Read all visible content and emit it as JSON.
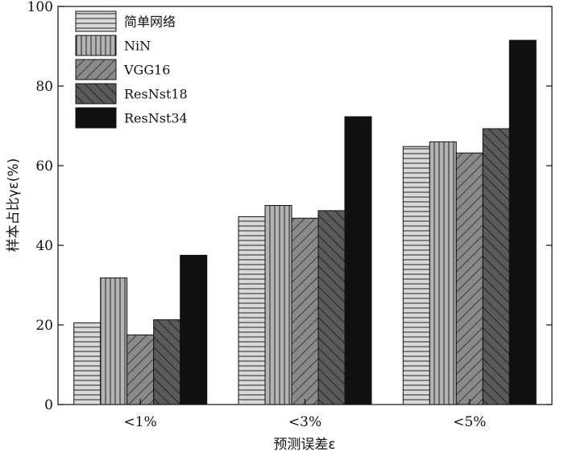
{
  "chart_data": {
    "type": "bar",
    "title": "",
    "xlabel": "预测误差ε",
    "ylabel": "样本占比γε(%)",
    "ylim": [
      0,
      100
    ],
    "yticks": [
      0,
      20,
      40,
      60,
      80,
      100
    ],
    "grid": false,
    "legend_position": "top-left",
    "categories": [
      "<1%",
      "<3%",
      "<5%"
    ],
    "series": [
      {
        "name": "简单网络",
        "pattern": "horizontal-lines",
        "color": "#d9d9d9",
        "values": [
          20.5,
          47.2,
          64.8
        ]
      },
      {
        "name": "NiN",
        "pattern": "vertical-lines",
        "color": "#b3b3b3",
        "values": [
          31.8,
          50.0,
          66.0
        ]
      },
      {
        "name": "VGG16",
        "pattern": "diagonal-lines",
        "color": "#8a8a8a",
        "values": [
          17.5,
          46.8,
          63.2
        ]
      },
      {
        "name": "ResNst18",
        "pattern": "diagonal-lines-dark",
        "color": "#555555",
        "values": [
          21.3,
          48.7,
          69.3
        ]
      },
      {
        "name": "ResNst34",
        "pattern": "solid",
        "color": "#111111",
        "values": [
          37.5,
          72.3,
          91.5
        ]
      }
    ]
  }
}
